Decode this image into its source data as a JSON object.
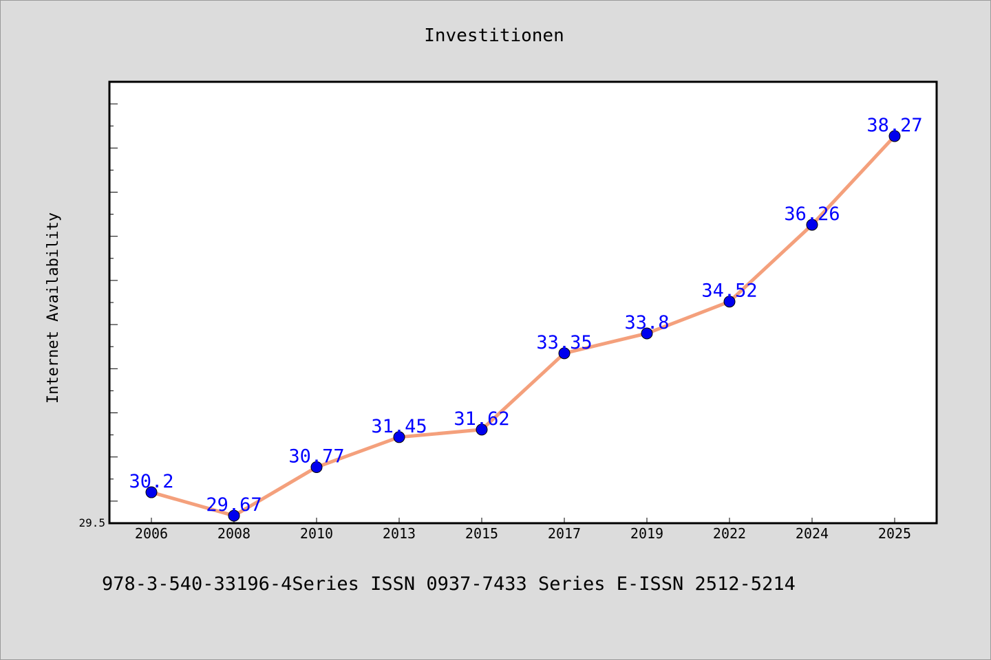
{
  "chart_data": {
    "type": "line",
    "title": "Investitionen",
    "xlabel": "",
    "ylabel": "Internet Availability",
    "categories": [
      "2006",
      "2008",
      "2010",
      "2013",
      "2015",
      "2017",
      "2019",
      "2022",
      "2024",
      "2025"
    ],
    "series": [
      {
        "values": [
          30.2,
          29.67,
          30.77,
          31.45,
          31.62,
          33.35,
          33.8,
          34.52,
          36.26,
          38.27
        ],
        "data_labels": [
          "30.2",
          "29.67",
          "30.77",
          "31.45",
          "31.62",
          "33.35",
          "33.8",
          "34.52",
          "36.26",
          "38.27"
        ]
      }
    ],
    "ytick_labels": [
      "29.5"
    ],
    "ylim": [
      29.5,
      39.5
    ],
    "grid": false,
    "legend": "none",
    "colors": {
      "line": "#f4a07c",
      "marker": "#0000ee",
      "label": "#0000ff",
      "background": "#dcdcdc",
      "plot_bg": "#ffffff"
    }
  },
  "footer": {
    "caption": "978-3-540-33196-4Series ISSN 0937-7433 Series E-ISSN 2512-5214"
  }
}
